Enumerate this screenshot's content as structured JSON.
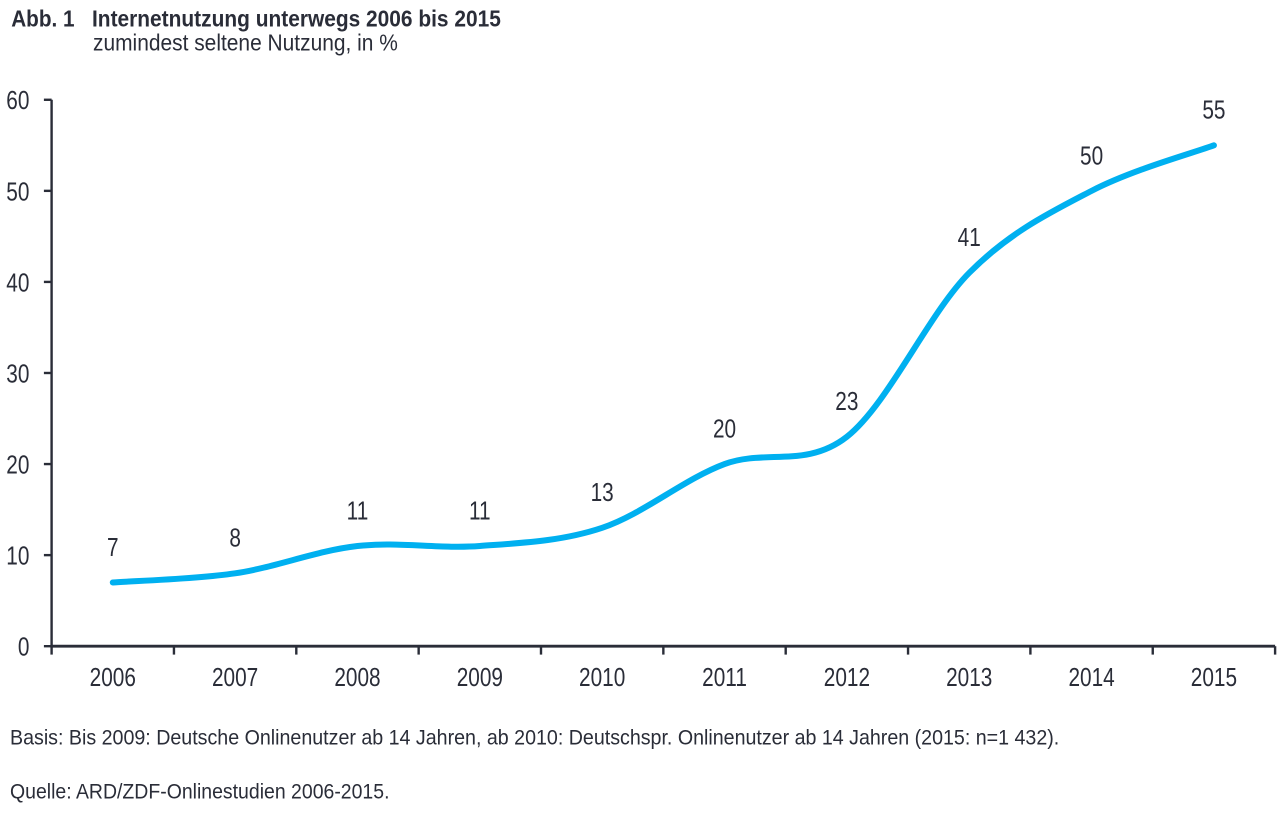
{
  "header": {
    "prefix": "Abb. 1",
    "title": "Internetnutzung unterwegs 2006 bis 2015",
    "subtitle": "zumindest seltene Nutzung, in %"
  },
  "footer": {
    "basis": "Basis: Bis 2009: Deutsche Onlinenutzer ab 14 Jahren, ab 2010: Deutschspr. Onlinenutzer ab 14 Jahren (2015: n=1 432).",
    "quelle": "Quelle: ARD/ZDF-Onlinestudien 2006-2015."
  },
  "colors": {
    "line": "#00b0f0",
    "text": "#2a2d38",
    "axis": "#2a2d38",
    "background": "#ffffff"
  },
  "chart_data": {
    "type": "line",
    "title": "Abb. 1 Internetnutzung unterwegs 2006 bis 2015",
    "subtitle": "zumindest seltene Nutzung, in %",
    "categories": [
      "2006",
      "2007",
      "2008",
      "2009",
      "2010",
      "2011",
      "2012",
      "2013",
      "2014",
      "2015"
    ],
    "series": [
      {
        "name": "Internetnutzung unterwegs",
        "values": [
          7,
          8,
          11,
          11,
          13,
          20,
          23,
          41,
          50,
          55
        ]
      }
    ],
    "data_labels": [
      "7",
      "8",
      "11",
      "11",
      "13",
      "20",
      "23",
      "41",
      "50",
      "55"
    ],
    "xlabel": "",
    "ylabel": "",
    "ylim": [
      0,
      60
    ],
    "yticks": [
      0,
      10,
      20,
      30,
      40,
      50,
      60
    ],
    "grid": false,
    "legend_position": "none",
    "line_style": "smooth"
  }
}
